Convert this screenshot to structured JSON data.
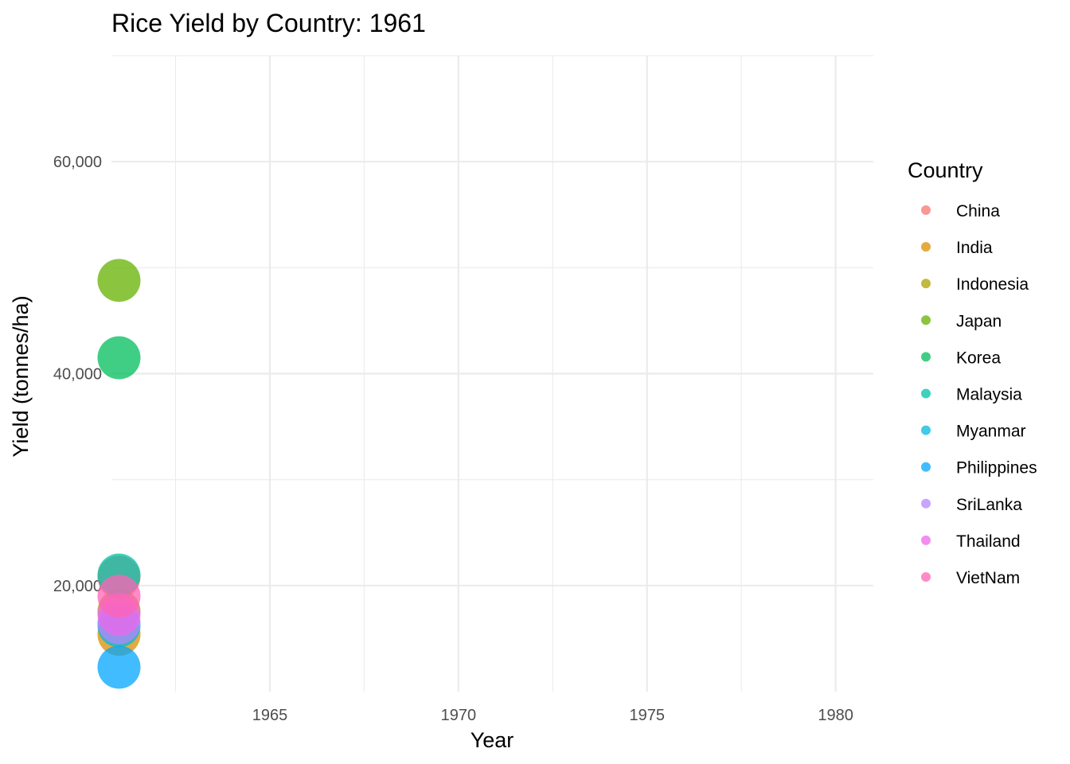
{
  "chart_data": {
    "type": "scatter",
    "title": "Rice Yield by Country: 1961",
    "xlabel": "Year",
    "ylabel": "Yield (tonnes/ha)",
    "xlim": [
      1960.8,
      1981
    ],
    "ylim": [
      10000,
      70000
    ],
    "x_ticks": [
      1965,
      1970,
      1975,
      1980
    ],
    "x_tick_labels": [
      "1965",
      "1970",
      "1975",
      "1980"
    ],
    "y_ticks": [
      20000,
      40000,
      60000
    ],
    "y_tick_labels": [
      "20,000",
      "40,000",
      "60,000"
    ],
    "grid": true,
    "legend": {
      "title": "Country",
      "placement": "right"
    },
    "series": [
      {
        "name": "China",
        "color": "#F8766D",
        "x": [
          1961
        ],
        "y": [
          20800
        ]
      },
      {
        "name": "India",
        "color": "#DB8E00",
        "x": [
          1961
        ],
        "y": [
          15400
        ]
      },
      {
        "name": "Indonesia",
        "color": "#AEA200",
        "x": [
          1961
        ],
        "y": [
          17600
        ]
      },
      {
        "name": "Japan",
        "color": "#64B200",
        "x": [
          1961
        ],
        "y": [
          48800
        ]
      },
      {
        "name": "Korea",
        "color": "#00BD5C",
        "x": [
          1961
        ],
        "y": [
          41500
        ]
      },
      {
        "name": "Malaysia",
        "color": "#00C1A7",
        "x": [
          1961
        ],
        "y": [
          21000
        ]
      },
      {
        "name": "Myanmar",
        "color": "#00BADE",
        "x": [
          1961
        ],
        "y": [
          16200
        ]
      },
      {
        "name": "Philippines",
        "color": "#00A6FF",
        "x": [
          1961
        ],
        "y": [
          12300
        ]
      },
      {
        "name": "SriLanka",
        "color": "#B385FF",
        "x": [
          1961
        ],
        "y": [
          16500
        ]
      },
      {
        "name": "Thailand",
        "color": "#EF67EB",
        "x": [
          1961
        ],
        "y": [
          17300
        ]
      },
      {
        "name": "VietNam",
        "color": "#FF63B6",
        "x": [
          1961
        ],
        "y": [
          19000
        ]
      }
    ]
  }
}
